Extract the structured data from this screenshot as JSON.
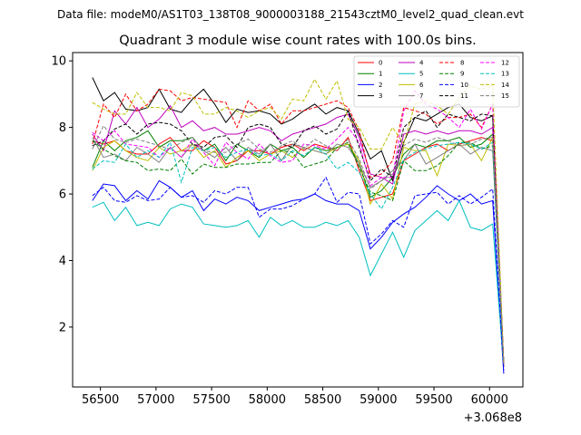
{
  "chart_data": {
    "type": "line",
    "suptitle": "Data file: modeM0/AS1T03_138T08_9000003188_21543cztM0_level2_quad_clean.evt",
    "title": "Quadrant 3 module wise count rates with 100.0s bins.",
    "xlabel": "",
    "ylabel": "",
    "x_offset_label": "+3.068e8",
    "xlim": [
      56250,
      60300
    ],
    "ylim": [
      0.2,
      10.25
    ],
    "xticks": [
      56500,
      57000,
      57500,
      58000,
      58500,
      59000,
      59500,
      60000
    ],
    "yticks": [
      2,
      4,
      6,
      8,
      10
    ],
    "grid": false,
    "legend_position": "top-right",
    "x": [
      56428,
      56528,
      56628,
      56728,
      56828,
      56928,
      57028,
      57128,
      57228,
      57328,
      57428,
      57528,
      57628,
      57728,
      57828,
      57928,
      58028,
      58128,
      58228,
      58328,
      58428,
      58528,
      58628,
      58728,
      58828,
      58928,
      59028,
      59128,
      59228,
      59328,
      59428,
      59528,
      59628,
      59728,
      59828,
      59928,
      60028,
      60128
    ],
    "series": [
      {
        "name": "0",
        "color": "#ff0000",
        "dash": "",
        "values": [
          7.6,
          7.5,
          7.6,
          7.3,
          7.2,
          7.2,
          7.5,
          7.7,
          7.3,
          7.3,
          7.6,
          7.4,
          6.9,
          7.0,
          7.3,
          7.3,
          7.2,
          7.4,
          7.5,
          7.3,
          7.5,
          7.4,
          7.3,
          7.7,
          6.7,
          5.8,
          5.9,
          6.0,
          7.0,
          7.2,
          7.4,
          7.5,
          7.3,
          7.5,
          7.6,
          7.7,
          7.6,
          0.9
        ]
      },
      {
        "name": "1",
        "color": "#008000",
        "dash": "",
        "values": [
          6.8,
          7.6,
          7.3,
          7.6,
          7.7,
          7.9,
          7.4,
          7.6,
          7.6,
          7.7,
          7.3,
          7.5,
          7.0,
          7.5,
          7.3,
          7.1,
          7.5,
          7.3,
          7.4,
          7.1,
          7.4,
          7.3,
          7.4,
          7.5,
          6.9,
          5.9,
          6.1,
          6.5,
          7.2,
          7.5,
          7.4,
          7.6,
          7.6,
          7.7,
          7.4,
          7.5,
          7.8,
          0.9
        ]
      },
      {
        "name": "2",
        "color": "#0000ff",
        "dash": "",
        "values": [
          5.8,
          6.3,
          6.25,
          5.8,
          6.1,
          5.85,
          6.4,
          6.2,
          5.9,
          6.1,
          5.5,
          5.85,
          5.7,
          5.9,
          5.8,
          5.5,
          5.6,
          5.7,
          5.8,
          5.85,
          6.0,
          5.8,
          5.7,
          5.7,
          5.5,
          4.35,
          4.7,
          5.15,
          5.4,
          5.6,
          5.9,
          6.25,
          6.0,
          5.8,
          6.0,
          5.7,
          5.8,
          0.6
        ]
      },
      {
        "name": "3",
        "color": "#000000",
        "dash": "",
        "values": [
          9.5,
          8.8,
          9.05,
          8.55,
          8.5,
          8.6,
          9.15,
          8.55,
          8.45,
          8.85,
          9.15,
          8.7,
          8.15,
          8.55,
          8.45,
          8.5,
          8.4,
          8.1,
          8.25,
          8.5,
          8.7,
          8.4,
          8.6,
          8.5,
          7.8,
          7.05,
          7.3,
          6.4,
          7.55,
          8.3,
          8.2,
          8.4,
          8.6,
          8.7,
          8.3,
          8.2,
          8.35,
          0.9
        ]
      },
      {
        "name": "4",
        "color": "#bf00bf",
        "dash": "",
        "values": [
          7.8,
          7.3,
          8.5,
          8.1,
          8.6,
          8.0,
          8.25,
          8.65,
          8.0,
          8.2,
          7.9,
          8.0,
          7.8,
          7.8,
          7.9,
          8.0,
          7.9,
          7.6,
          7.8,
          7.9,
          8.0,
          8.1,
          8.3,
          8.4,
          7.7,
          6.6,
          6.5,
          6.3,
          7.8,
          7.9,
          7.8,
          7.9,
          7.8,
          7.9,
          7.9,
          7.8,
          8.0,
          0.9
        ]
      },
      {
        "name": "5",
        "color": "#00bfbf",
        "dash": "",
        "values": [
          5.6,
          5.75,
          5.2,
          5.6,
          5.05,
          5.15,
          5.05,
          5.55,
          5.7,
          5.6,
          5.1,
          5.05,
          5.0,
          5.05,
          5.2,
          4.7,
          5.3,
          5.05,
          5.2,
          5.0,
          5.0,
          5.15,
          5.05,
          5.2,
          4.7,
          3.55,
          4.2,
          4.85,
          4.1,
          4.9,
          5.2,
          5.5,
          5.2,
          5.8,
          5.0,
          4.9,
          5.1,
          0.8
        ]
      },
      {
        "name": "6",
        "color": "#bfbf00",
        "dash": "",
        "values": [
          6.7,
          7.4,
          7.6,
          7.3,
          7.1,
          7.0,
          7.4,
          7.2,
          7.3,
          7.5,
          7.1,
          7.3,
          6.8,
          7.1,
          7.3,
          7.0,
          7.2,
          7.3,
          7.1,
          7.4,
          7.3,
          7.2,
          7.4,
          7.5,
          7.0,
          5.7,
          6.3,
          5.85,
          7.4,
          7.3,
          7.3,
          6.55,
          7.5,
          7.45,
          7.5,
          7.0,
          7.7,
          0.9
        ]
      },
      {
        "name": "7",
        "color": "#808080",
        "dash": "",
        "values": [
          7.7,
          7.1,
          7.2,
          7.0,
          7.4,
          7.2,
          6.95,
          7.4,
          7.1,
          7.5,
          7.3,
          7.1,
          7.4,
          7.0,
          7.4,
          7.2,
          7.5,
          7.0,
          7.5,
          7.4,
          7.3,
          7.2,
          7.5,
          7.4,
          6.9,
          6.2,
          6.4,
          6.7,
          7.0,
          7.5,
          6.9,
          7.1,
          7.3,
          7.5,
          7.2,
          7.4,
          7.3,
          0.9
        ]
      },
      {
        "name": "8",
        "color": "#ff0000",
        "dash": "4,2",
        "values": [
          7.5,
          8.7,
          8.3,
          9.0,
          8.5,
          8.7,
          9.15,
          9.1,
          8.8,
          8.9,
          8.85,
          8.8,
          8.75,
          8.0,
          8.8,
          8.5,
          8.7,
          8.1,
          8.5,
          8.5,
          8.6,
          8.7,
          8.8,
          8.6,
          7.9,
          6.5,
          6.6,
          7.0,
          8.6,
          8.5,
          8.4,
          8.1,
          8.3,
          8.3,
          8.4,
          8.0,
          8.7,
          0.8
        ]
      },
      {
        "name": "9",
        "color": "#008000",
        "dash": "4,2",
        "values": [
          7.6,
          7.35,
          7.15,
          7.0,
          6.95,
          6.7,
          6.75,
          6.7,
          7.05,
          6.6,
          6.9,
          6.8,
          6.8,
          6.9,
          6.9,
          6.95,
          6.95,
          7.3,
          7.25,
          6.8,
          6.9,
          7.0,
          7.4,
          7.55,
          6.8,
          6.05,
          5.95,
          5.8,
          7.0,
          6.7,
          6.7,
          6.85,
          7.15,
          7.55,
          7.55,
          7.35,
          7.45,
          0.9
        ]
      },
      {
        "name": "10",
        "color": "#0000ff",
        "dash": "4,2",
        "values": [
          5.95,
          6.2,
          5.8,
          5.75,
          5.95,
          5.8,
          5.85,
          6.2,
          5.9,
          5.95,
          5.75,
          6.1,
          6.0,
          6.2,
          6.2,
          5.3,
          5.55,
          5.55,
          5.65,
          5.85,
          6.0,
          6.5,
          5.75,
          6.05,
          6.0,
          4.5,
          4.8,
          5.2,
          5.0,
          5.95,
          6.0,
          6.05,
          5.7,
          5.95,
          5.7,
          5.9,
          6.15,
          0.7
        ]
      },
      {
        "name": "11",
        "color": "#000000",
        "dash": "4,2",
        "values": [
          7.45,
          7.6,
          7.95,
          8.1,
          7.8,
          8.1,
          8.15,
          8.1,
          7.9,
          7.5,
          7.4,
          7.7,
          7.75,
          7.4,
          8.0,
          8.1,
          8.0,
          7.5,
          7.4,
          7.9,
          8.05,
          7.8,
          7.95,
          8.5,
          7.4,
          6.4,
          6.75,
          6.5,
          8.0,
          8.3,
          8.5,
          8.0,
          8.4,
          8.3,
          8.2,
          8.4,
          8.35,
          0.9
        ]
      },
      {
        "name": "12",
        "color": "#ff00ff",
        "dash": "4,2",
        "values": [
          7.85,
          7.6,
          7.9,
          7.5,
          7.45,
          7.4,
          7.1,
          7.4,
          7.1,
          7.65,
          7.25,
          6.85,
          7.55,
          7.25,
          7.05,
          7.5,
          7.15,
          6.95,
          7.0,
          7.5,
          7.45,
          7.35,
          7.65,
          8.0,
          7.55,
          6.25,
          6.5,
          6.5,
          8.5,
          9.1,
          8.7,
          8.55,
          8.3,
          8.0,
          8.55,
          7.95,
          8.7,
          0.9
        ]
      },
      {
        "name": "13",
        "color": "#00bfbf",
        "dash": "4,2",
        "values": [
          6.75,
          7.0,
          6.95,
          7.5,
          7.1,
          7.3,
          7.1,
          7.55,
          6.35,
          7.4,
          7.3,
          7.4,
          7.1,
          7.25,
          7.35,
          7.15,
          7.2,
          7.0,
          7.3,
          7.15,
          7.4,
          7.2,
          6.75,
          6.95,
          6.65,
          6.0,
          5.55,
          6.2,
          7.05,
          7.25,
          7.35,
          7.45,
          7.5,
          7.55,
          7.5,
          7.35,
          7.55,
          0.9
        ]
      },
      {
        "name": "14",
        "color": "#bfbf00",
        "dash": "4,2",
        "values": [
          8.75,
          8.55,
          8.4,
          8.4,
          9.05,
          8.6,
          8.6,
          8.5,
          9.05,
          8.95,
          8.4,
          8.4,
          8.6,
          8.5,
          8.3,
          8.5,
          8.6,
          8.25,
          8.85,
          8.8,
          9.45,
          8.85,
          9.4,
          8.25,
          8.0,
          7.35,
          7.35,
          8.0,
          7.5,
          8.7,
          8.8,
          8.65,
          8.4,
          8.9,
          9.25,
          9.15,
          9.25,
          0.9
        ]
      },
      {
        "name": "15",
        "color": "#808080",
        "dash": "4,2",
        "values": [
          7.35,
          8.05,
          7.65,
          7.55,
          7.65,
          7.55,
          7.45,
          7.35,
          7.55,
          7.7,
          7.3,
          7.25,
          7.25,
          7.5,
          7.65,
          7.35,
          7.25,
          7.45,
          7.6,
          7.35,
          7.65,
          7.45,
          7.3,
          7.65,
          7.05,
          6.15,
          6.4,
          6.6,
          7.45,
          7.65,
          7.55,
          7.7,
          7.6,
          7.45,
          7.5,
          7.65,
          7.7,
          0.9
        ]
      }
    ]
  }
}
